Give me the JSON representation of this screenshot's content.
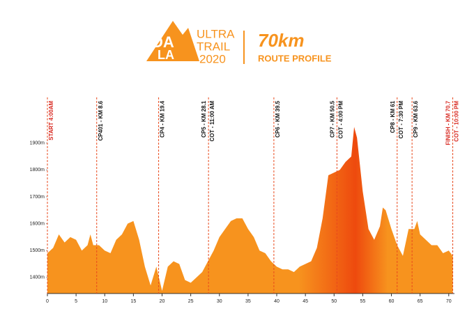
{
  "logo": {
    "letters": [
      "DA",
      "LA"
    ],
    "line1": "ULTRA",
    "line2": "TRAIL",
    "line3": "2020",
    "distance": "70km",
    "subtitle": "ROUTE PROFILE"
  },
  "chart_data": {
    "type": "area",
    "color": "#f7931e",
    "peak_color": "#ee4a0e",
    "x": [
      0,
      1,
      2,
      3,
      4,
      5,
      6,
      7,
      7.5,
      8,
      9,
      10,
      11,
      12,
      13,
      14,
      15,
      16,
      17,
      18,
      19,
      20,
      21,
      22,
      23,
      24,
      25,
      26,
      27,
      28,
      29,
      30,
      31,
      32,
      33,
      34,
      35,
      36,
      37,
      38,
      39,
      40,
      41,
      42,
      43,
      44,
      45,
      46,
      47,
      48,
      49,
      50,
      51,
      52,
      53,
      53.5,
      54,
      55,
      56,
      57,
      58,
      58.5,
      59,
      60,
      61,
      62,
      63,
      64,
      64.5,
      65,
      66,
      67,
      68,
      69,
      70,
      70.7
    ],
    "values": [
      1490,
      1510,
      1560,
      1530,
      1550,
      1540,
      1500,
      1520,
      1560,
      1520,
      1520,
      1500,
      1490,
      1540,
      1560,
      1600,
      1610,
      1540,
      1440,
      1370,
      1440,
      1350,
      1440,
      1460,
      1450,
      1390,
      1380,
      1400,
      1420,
      1460,
      1500,
      1550,
      1580,
      1610,
      1620,
      1620,
      1580,
      1550,
      1500,
      1490,
      1460,
      1440,
      1430,
      1430,
      1420,
      1440,
      1450,
      1460,
      1510,
      1620,
      1780,
      1790,
      1800,
      1830,
      1850,
      1960,
      1920,
      1720,
      1580,
      1540,
      1590,
      1660,
      1650,
      1580,
      1520,
      1480,
      1580,
      1580,
      1610,
      1560,
      1540,
      1520,
      1520,
      1490,
      1500,
      1480
    ],
    "xlim": [
      0,
      71
    ],
    "ylim": [
      1340,
      2070
    ],
    "xticks": [
      0,
      5,
      10,
      15,
      20,
      25,
      30,
      35,
      40,
      45,
      50,
      55,
      60,
      65,
      70
    ],
    "yticks": [
      {
        "value": 1400,
        "label": "1400m"
      },
      {
        "value": 1500,
        "label": "1500m"
      },
      {
        "value": 1600,
        "label": "1600m"
      },
      {
        "value": 1700,
        "label": "1700m"
      },
      {
        "value": 1800,
        "label": "1800m"
      },
      {
        "value": 1900,
        "label": "1900m"
      }
    ],
    "checkpoints": [
      {
        "km": 0,
        "color": "#d7261e",
        "labels": [
          "START 4:00AM"
        ]
      },
      {
        "km": 8.6,
        "color": "#111111",
        "labels": [
          "CP401 - KM 8.6"
        ]
      },
      {
        "km": 19.4,
        "color": "#111111",
        "labels": [
          "CP4 - KM 19.4"
        ]
      },
      {
        "km": 28.1,
        "color": "#111111",
        "labels": [
          "CP5 - KM 28.1",
          "COT - 11:00 AM"
        ]
      },
      {
        "km": 39.5,
        "color": "#111111",
        "labels": [
          "CP6 - KM 39.5"
        ]
      },
      {
        "km": 50.5,
        "color": "#111111",
        "labels": [
          "CP7 - KM 50.5",
          "COT - 4:00 PM"
        ]
      },
      {
        "km": 61,
        "color": "#111111",
        "labels": [
          "CP8 - KM 61",
          "COT - 7:30 PM"
        ]
      },
      {
        "km": 63.6,
        "color": "#111111",
        "labels": [
          "CP9 - KM 63.6"
        ]
      },
      {
        "km": 70.7,
        "color": "#d7261e",
        "labels": [
          "FINISH - KM 70.7",
          "COT - 10:00 PM"
        ]
      }
    ]
  }
}
